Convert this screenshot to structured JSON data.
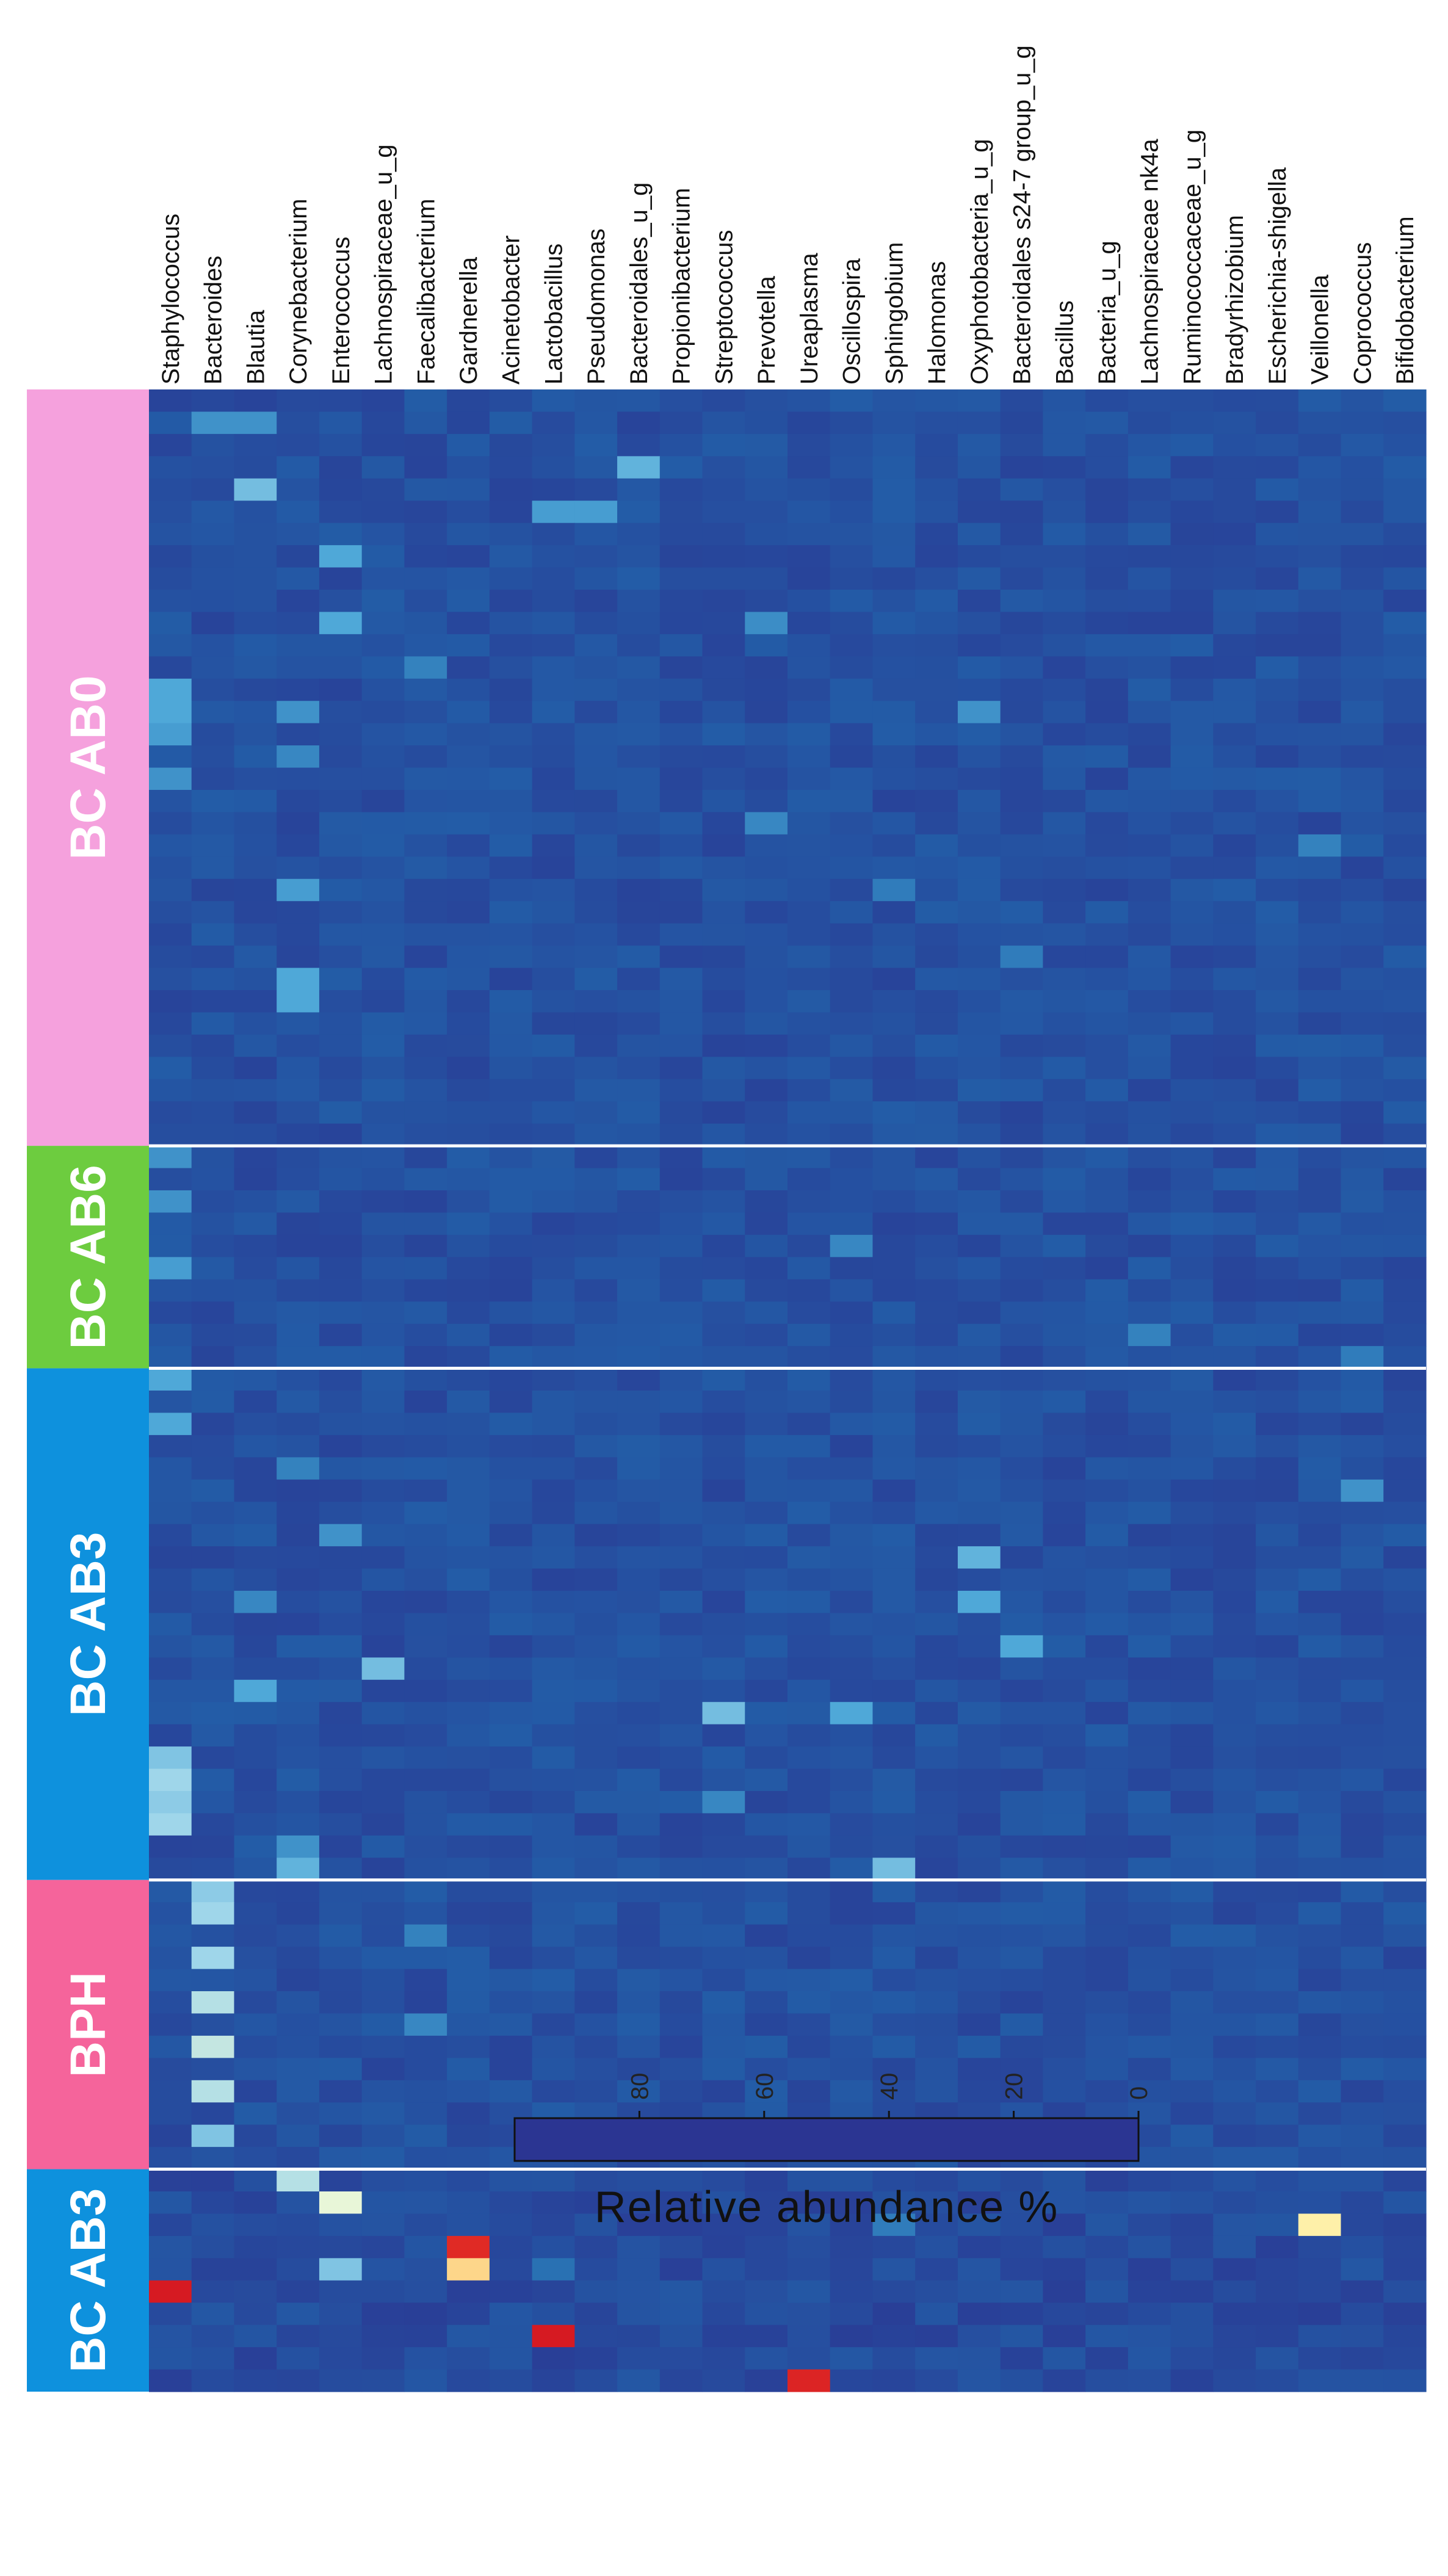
{
  "chart_data": {
    "type": "heatmap",
    "orientation": "rotated-90",
    "taxa": [
      "Staphylococcus",
      "Bacteroides",
      "Blautia",
      "Corynebacterium",
      "Enterococcus",
      "Lachnospiraceae_u_g",
      "Faecalibacterium",
      "Gardnerella",
      "Acinetobacter",
      "Lactobacillus",
      "Pseudomonas",
      "Bacteroidales_u_g",
      "Propionibacterium",
      "Streptococcus",
      "Prevotella",
      "Ureaplasma",
      "Oscillospira",
      "Sphingobium",
      "Halomonas",
      "Oxyphotobacteria_u_g",
      "Bacteroidales s24-7 group_u_g",
      "Bacillus",
      "Bacteria_u_g",
      "Lachnospiraceae nk4a",
      "Ruminococcaceae_u_g",
      "Bradyrhizobium",
      "Escherichia-shigella",
      "Veillonella",
      "Coprococcus",
      "Bifidobacterium"
    ],
    "groups": [
      {
        "label": "BC AB0",
        "color": "#f5a1dd",
        "samples": 34
      },
      {
        "label": "BC AB6",
        "color": "#6dcc3f",
        "samples": 10
      },
      {
        "label": "BC AB3",
        "color": "#0e91dd",
        "samples": 23
      },
      {
        "label": "BPH",
        "color": "#f5649b",
        "samples": 13
      },
      {
        "label": "BC AB3",
        "color": "#0e91dd",
        "samples": 10
      }
    ],
    "value_range": [
      0,
      100
    ],
    "background_value": 3,
    "hotspots": [
      {
        "group": 0,
        "sample": 1,
        "taxon": 1,
        "value": 18
      },
      {
        "group": 0,
        "sample": 1,
        "taxon": 2,
        "value": 18
      },
      {
        "group": 0,
        "sample": 4,
        "taxon": 2,
        "value": 28
      },
      {
        "group": 0,
        "sample": 3,
        "taxon": 11,
        "value": 25
      },
      {
        "group": 0,
        "sample": 5,
        "taxon": 9,
        "value": 20
      },
      {
        "group": 0,
        "sample": 5,
        "taxon": 10,
        "value": 20
      },
      {
        "group": 0,
        "sample": 7,
        "taxon": 4,
        "value": 22
      },
      {
        "group": 0,
        "sample": 10,
        "taxon": 4,
        "value": 22
      },
      {
        "group": 0,
        "sample": 10,
        "taxon": 14,
        "value": 17
      },
      {
        "group": 0,
        "sample": 12,
        "taxon": 6,
        "value": 15
      },
      {
        "group": 0,
        "sample": 13,
        "taxon": 0,
        "value": 22
      },
      {
        "group": 0,
        "sample": 14,
        "taxon": 0,
        "value": 22
      },
      {
        "group": 0,
        "sample": 14,
        "taxon": 3,
        "value": 18
      },
      {
        "group": 0,
        "sample": 14,
        "taxon": 19,
        "value": 18
      },
      {
        "group": 0,
        "sample": 15,
        "taxon": 0,
        "value": 20
      },
      {
        "group": 0,
        "sample": 17,
        "taxon": 0,
        "value": 18
      },
      {
        "group": 0,
        "sample": 16,
        "taxon": 3,
        "value": 16
      },
      {
        "group": 0,
        "sample": 19,
        "taxon": 14,
        "value": 16
      },
      {
        "group": 0,
        "sample": 20,
        "taxon": 27,
        "value": 15
      },
      {
        "group": 0,
        "sample": 22,
        "taxon": 3,
        "value": 20
      },
      {
        "group": 0,
        "sample": 26,
        "taxon": 3,
        "value": 22
      },
      {
        "group": 0,
        "sample": 27,
        "taxon": 3,
        "value": 22
      },
      {
        "group": 0,
        "sample": 22,
        "taxon": 17,
        "value": 14
      },
      {
        "group": 0,
        "sample": 25,
        "taxon": 20,
        "value": 14
      },
      {
        "group": 1,
        "sample": 0,
        "taxon": 0,
        "value": 18
      },
      {
        "group": 1,
        "sample": 2,
        "taxon": 0,
        "value": 18
      },
      {
        "group": 1,
        "sample": 5,
        "taxon": 0,
        "value": 20
      },
      {
        "group": 1,
        "sample": 4,
        "taxon": 16,
        "value": 16
      },
      {
        "group": 1,
        "sample": 8,
        "taxon": 23,
        "value": 15
      },
      {
        "group": 1,
        "sample": 9,
        "taxon": 28,
        "value": 14
      },
      {
        "group": 2,
        "sample": 0,
        "taxon": 0,
        "value": 22
      },
      {
        "group": 2,
        "sample": 2,
        "taxon": 0,
        "value": 22
      },
      {
        "group": 2,
        "sample": 4,
        "taxon": 3,
        "value": 15
      },
      {
        "group": 2,
        "sample": 5,
        "taxon": 28,
        "value": 18
      },
      {
        "group": 2,
        "sample": 7,
        "taxon": 4,
        "value": 18
      },
      {
        "group": 2,
        "sample": 8,
        "taxon": 19,
        "value": 25
      },
      {
        "group": 2,
        "sample": 10,
        "taxon": 19,
        "value": 22
      },
      {
        "group": 2,
        "sample": 10,
        "taxon": 2,
        "value": 16
      },
      {
        "group": 2,
        "sample": 12,
        "taxon": 20,
        "value": 22
      },
      {
        "group": 2,
        "sample": 13,
        "taxon": 5,
        "value": 28
      },
      {
        "group": 2,
        "sample": 14,
        "taxon": 2,
        "value": 22
      },
      {
        "group": 2,
        "sample": 15,
        "taxon": 16,
        "value": 22
      },
      {
        "group": 2,
        "sample": 15,
        "taxon": 13,
        "value": 28
      },
      {
        "group": 2,
        "sample": 17,
        "taxon": 0,
        "value": 30
      },
      {
        "group": 2,
        "sample": 18,
        "taxon": 0,
        "value": 35
      },
      {
        "group": 2,
        "sample": 19,
        "taxon": 0,
        "value": 32
      },
      {
        "group": 2,
        "sample": 20,
        "taxon": 0,
        "value": 35
      },
      {
        "group": 2,
        "sample": 19,
        "taxon": 13,
        "value": 16
      },
      {
        "group": 2,
        "sample": 21,
        "taxon": 3,
        "value": 18
      },
      {
        "group": 2,
        "sample": 22,
        "taxon": 3,
        "value": 25
      },
      {
        "group": 2,
        "sample": 22,
        "taxon": 17,
        "value": 28
      },
      {
        "group": 3,
        "sample": 0,
        "taxon": 1,
        "value": 32
      },
      {
        "group": 3,
        "sample": 1,
        "taxon": 1,
        "value": 35
      },
      {
        "group": 3,
        "sample": 3,
        "taxon": 1,
        "value": 35
      },
      {
        "group": 3,
        "sample": 5,
        "taxon": 1,
        "value": 38
      },
      {
        "group": 3,
        "sample": 7,
        "taxon": 1,
        "value": 40
      },
      {
        "group": 3,
        "sample": 9,
        "taxon": 1,
        "value": 38
      },
      {
        "group": 3,
        "sample": 11,
        "taxon": 1,
        "value": 30
      },
      {
        "group": 3,
        "sample": 2,
        "taxon": 6,
        "value": 15
      },
      {
        "group": 3,
        "sample": 6,
        "taxon": 6,
        "value": 16
      },
      {
        "group": 3,
        "sample": 11,
        "taxon": 22,
        "value": 18
      },
      {
        "group": 4,
        "sample": 0,
        "taxon": 3,
        "value": 38
      },
      {
        "group": 4,
        "sample": 1,
        "taxon": 4,
        "value": 45
      },
      {
        "group": 4,
        "sample": 2,
        "taxon": 27,
        "value": 55
      },
      {
        "group": 4,
        "sample": 2,
        "taxon": 17,
        "value": 14
      },
      {
        "group": 4,
        "sample": 3,
        "taxon": 7,
        "value": 90
      },
      {
        "group": 4,
        "sample": 4,
        "taxon": 7,
        "value": 62
      },
      {
        "group": 4,
        "sample": 4,
        "taxon": 4,
        "value": 30
      },
      {
        "group": 4,
        "sample": 4,
        "taxon": 9,
        "value": 12
      },
      {
        "group": 4,
        "sample": 5,
        "taxon": 0,
        "value": 95
      },
      {
        "group": 4,
        "sample": 7,
        "taxon": 9,
        "value": 95
      },
      {
        "group": 4,
        "sample": 9,
        "taxon": 15,
        "value": 92
      }
    ],
    "colorbar": {
      "ticks": [
        80,
        60,
        40,
        20,
        0
      ],
      "stops": [
        {
          "v": 0,
          "c": "#2b3592"
        },
        {
          "v": 10,
          "c": "#2166ac"
        },
        {
          "v": 22,
          "c": "#4fa8d8"
        },
        {
          "v": 35,
          "c": "#9fd6ea"
        },
        {
          "v": 45,
          "c": "#e8f6d8"
        },
        {
          "v": 52,
          "c": "#fffbb6"
        },
        {
          "v": 62,
          "c": "#fdd68a"
        },
        {
          "v": 72,
          "c": "#fc8f5a"
        },
        {
          "v": 85,
          "c": "#ea3a28"
        },
        {
          "v": 100,
          "c": "#cc0a1f"
        }
      ]
    },
    "legend_title": "Relative abundance %",
    "title": "",
    "xlabel": "",
    "ylabel": ""
  }
}
